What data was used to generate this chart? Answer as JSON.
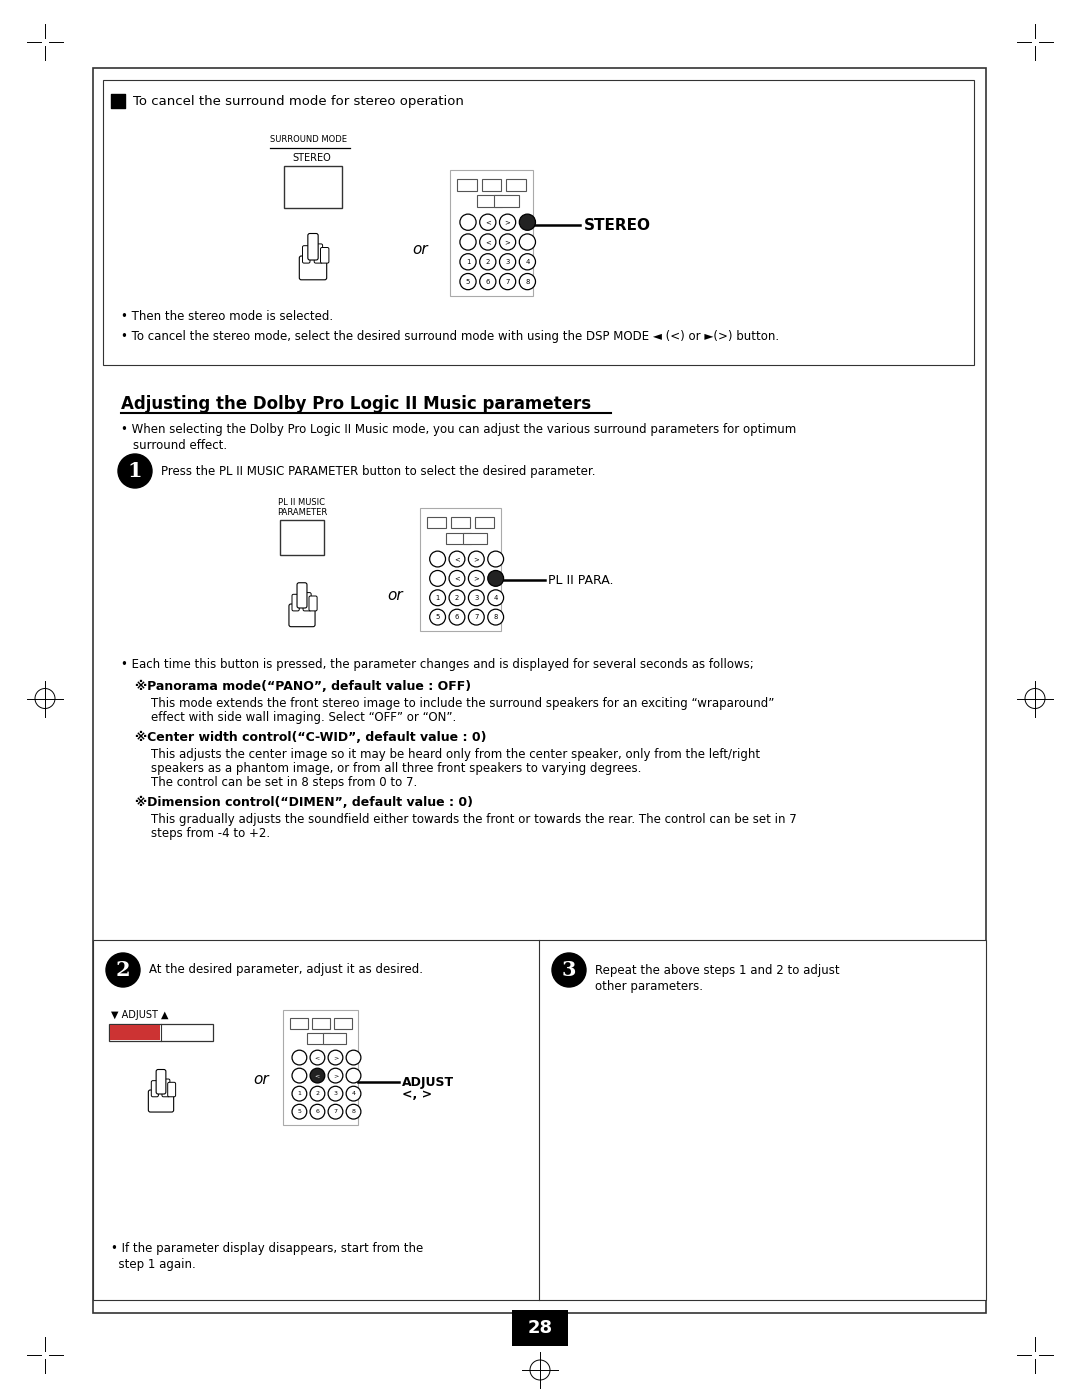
{
  "page_bg": "#ffffff",
  "page_number": "28",
  "title_section1": "To cancel the surround mode for stereo operation",
  "section2_title": "Adjusting the Dolby Pro Logic II Music parameters",
  "bullet1": "Then the stereo mode is selected.",
  "bullet2": "To cancel the stereo mode, select the desired surround mode with using the DSP MODE ◄ (<) or ►(>) button.",
  "step1_text": "Press the PL II MUSIC PARAMETER button to select the desired parameter.",
  "step2_text": "At the desired parameter, adjust it as desired.",
  "step3_text": "Repeat the above steps 1 and 2 to adjust\nother parameters.",
  "bullet3": "Each time this button is pressed, the parameter changes and is displayed for several seconds as follows;",
  "pano_title": "※Panorama mode(“PANO”, default value : OFF)",
  "pano_body1": "This mode extends the front stereo image to include the surround speakers for an exciting “wraparound”",
  "pano_body2": "effect with side wall imaging. Select “OFF” or “ON”.",
  "cwid_title": "※Center width control(“C-WID”, default value : 0)",
  "cwid_body1": "This adjusts the center image so it may be heard only from the center speaker, only from the left/right",
  "cwid_body2": "speakers as a phantom image, or from all three front speakers to varying degrees.",
  "cwid_body3": "The control can be set in 8 steps from 0 to 7.",
  "dimen_title": "※Dimension control(“DIMEN”, default value : 0)",
  "dimen_body1": "This gradually adjusts the soundfield either towards the front or towards the rear. The control can be set in 7",
  "dimen_body2": "steps from -4 to +2.",
  "param_note1": "• If the parameter display disappears, start from the",
  "param_note2": "  step 1 again.",
  "stereo_label": "STEREO",
  "surround_mode_label": "SURROUND MODE",
  "stereo_button_label": "STEREO",
  "pl_para_label": "PL II PARA.",
  "pl_music_label1": "PL II MUSIC",
  "pl_music_label2": "PARAMETER",
  "adjust_label1": "ADJUST",
  "adjust_label2": "<, >",
  "adjust_knob_label": "▼ ADJUST ▲"
}
